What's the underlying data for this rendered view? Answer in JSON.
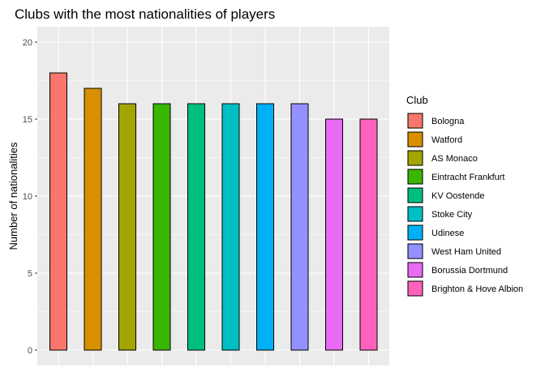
{
  "chart_data": {
    "type": "bar",
    "title": "Clubs with the most nationalities of players",
    "xlabel": "",
    "ylabel": "Number of nationalities",
    "ylim": [
      0,
      20.5
    ],
    "yticks": [
      0,
      5,
      10,
      15,
      20
    ],
    "grid": true,
    "legend": {
      "title": "Club",
      "position": "right"
    },
    "categories": [
      "Bologna",
      "Watford",
      "AS Monaco",
      "Eintracht Frankfurt",
      "KV Oostende",
      "Stoke City",
      "Udinese",
      "West Ham United",
      "Borussia Dortmund",
      "Brighton & Hove Albion"
    ],
    "values": [
      18,
      17,
      16,
      16,
      16,
      16,
      16,
      16,
      15,
      15
    ],
    "colors": [
      "#F8766D",
      "#D89000",
      "#A3A500",
      "#39B600",
      "#00BF7D",
      "#00BFC4",
      "#00B0F6",
      "#9590FF",
      "#E76BF3",
      "#FF62BC"
    ]
  }
}
